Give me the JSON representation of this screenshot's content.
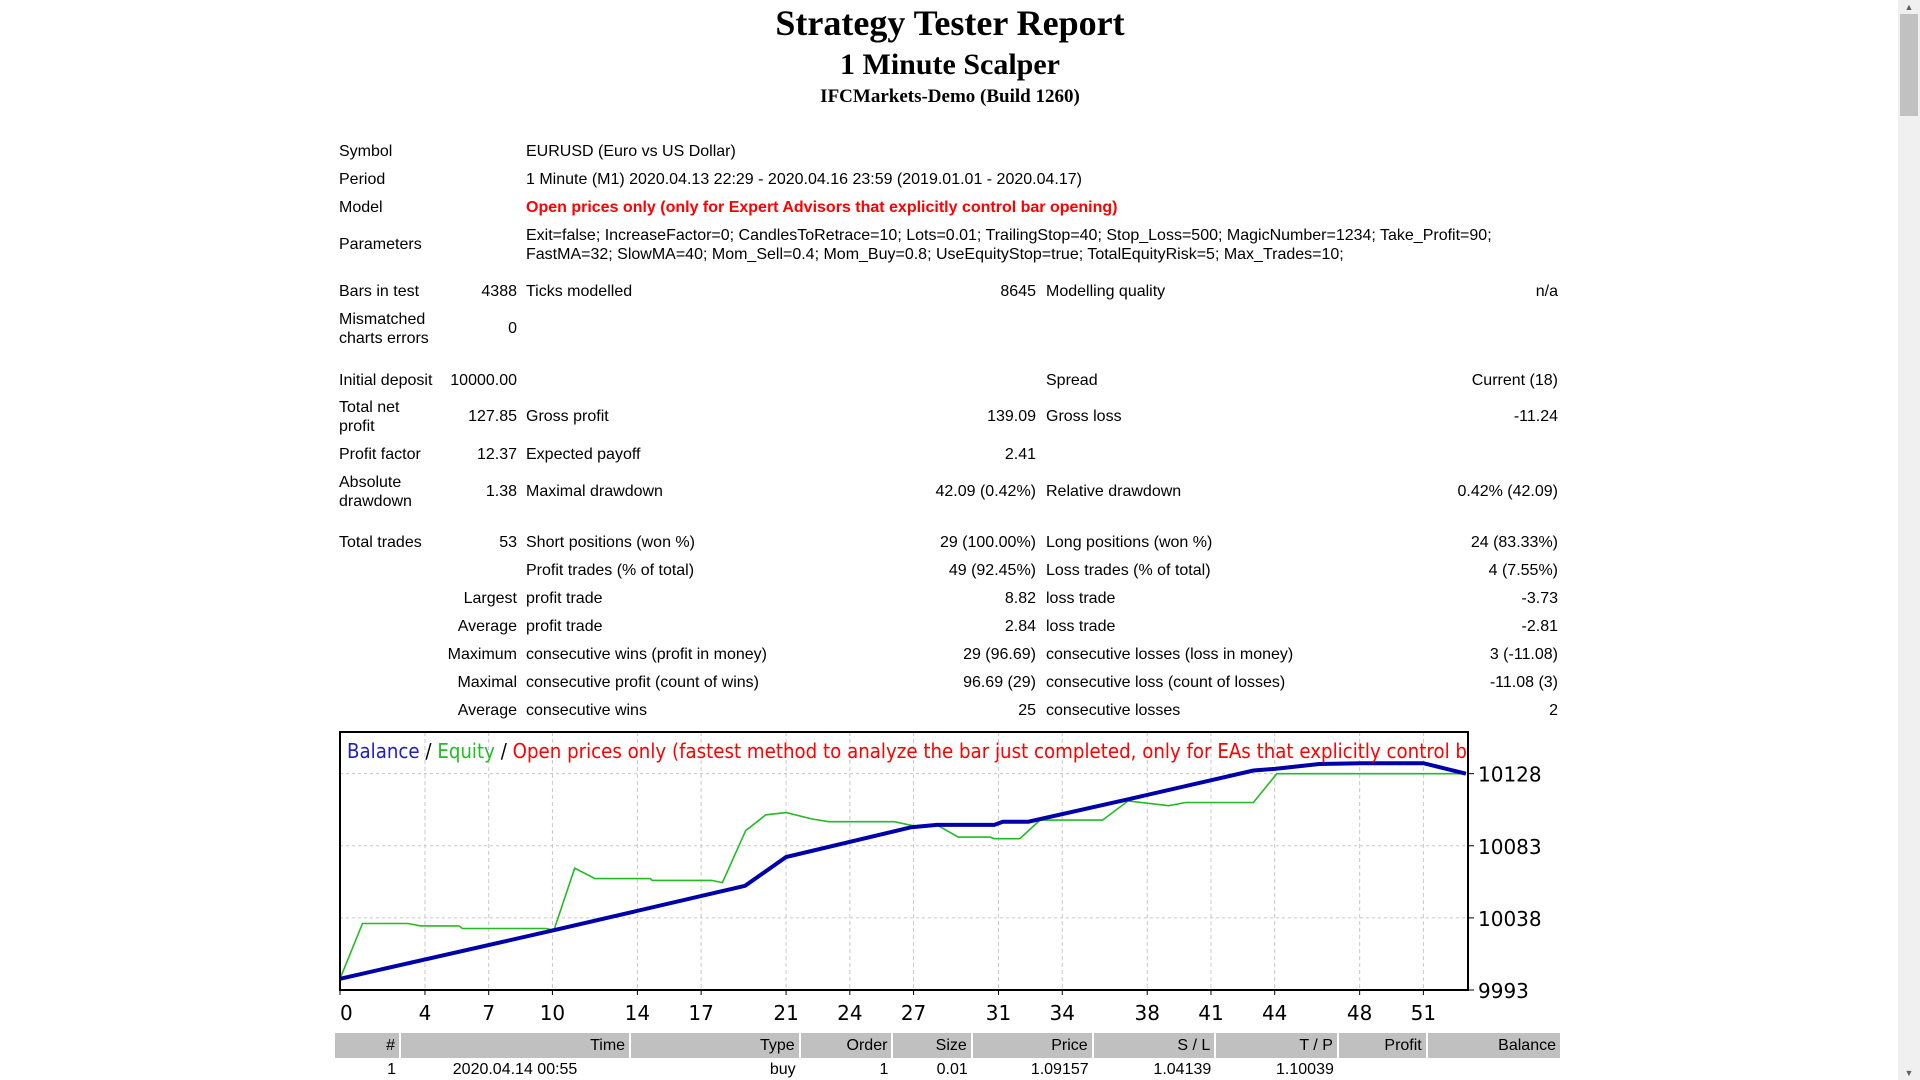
{
  "header": {
    "title": "Strategy Tester Report",
    "expert": "1 Minute Scalper",
    "server": "IFCMarkets-Demo (Build 1260)"
  },
  "info": {
    "symbol_label": "Symbol",
    "symbol": "EURUSD (Euro vs US Dollar)",
    "period_label": "Period",
    "period": "1 Minute (M1) 2020.04.13 22:29 - 2020.04.16 23:59 (2019.01.01 - 2020.04.17)",
    "model_label": "Model",
    "model": "Open prices only (only for Expert Advisors that explicitly control bar opening)",
    "parameters_label": "Parameters",
    "parameters_line1": "Exit=false; IncreaseFactor=0; CandlesToRetrace=10; Lots=0.01; TrailingStop=40; Stop_Loss=500; MagicNumber=1234; Take_Profit=90;",
    "parameters_line2": "FastMA=32; SlowMA=40; Mom_Sell=0.4; Mom_Buy=0.8; UseEquityStop=true; TotalEquityRisk=5; Max_Trades=10;",
    "bars_label": "Bars in test",
    "bars": "4388",
    "ticks_label": "Ticks modelled",
    "ticks": "8645",
    "quality_label": "Modelling quality",
    "quality": "n/a",
    "mismatched_label_1": "Mismatched",
    "mismatched_label_2": "charts errors",
    "mismatched": "0"
  },
  "stats": {
    "initial_deposit_label": "Initial deposit",
    "initial_deposit": "10000.00",
    "spread_label": "Spread",
    "spread": "Current (18)",
    "total_net_label_1": "Total net",
    "total_net_label_2": "profit",
    "total_net": "127.85",
    "gross_profit_label": "Gross profit",
    "gross_profit": "139.09",
    "gross_loss_label": "Gross loss",
    "gross_loss": "-11.24",
    "profit_factor_label": "Profit factor",
    "profit_factor": "12.37",
    "expected_payoff_label": "Expected payoff",
    "expected_payoff": "2.41",
    "absolute_dd_label_1": "Absolute",
    "absolute_dd_label_2": "drawdown",
    "absolute_dd": "1.38",
    "maximal_dd_label": "Maximal drawdown",
    "maximal_dd": "42.09 (0.42%)",
    "relative_dd_label": "Relative drawdown",
    "relative_dd": "0.42% (42.09)",
    "total_trades_label": "Total trades",
    "total_trades": "53",
    "short_label": "Short positions (won %)",
    "short": "29 (100.00%)",
    "long_label": "Long positions (won %)",
    "long": "24 (83.33%)",
    "profit_trades_label": "Profit trades (% of total)",
    "profit_trades": "49 (92.45%)",
    "loss_trades_label": "Loss trades (% of total)",
    "loss_trades": "4 (7.55%)",
    "largest_label": "Largest",
    "largest_profit_label": "profit trade",
    "largest_profit": "8.82",
    "largest_loss_label": "loss trade",
    "largest_loss": "-3.73",
    "average_label": "Average",
    "average_profit_label": "profit trade",
    "average_profit": "2.84",
    "average_loss_label": "loss trade",
    "average_loss": "-2.81",
    "maximum_label": "Maximum",
    "max_cons_wins_label": "consecutive wins (profit in money)",
    "max_cons_wins": "29 (96.69)",
    "max_cons_losses_label": "consecutive losses (loss in money)",
    "max_cons_losses": "3 (-11.08)",
    "maximal_label": "Maximal",
    "maximal_cons_profit_label": "consecutive profit (count of wins)",
    "maximal_cons_profit": "96.69 (29)",
    "maximal_cons_loss_label": "consecutive loss (count of losses)",
    "maximal_cons_loss": "-11.08 (3)",
    "avg_label": "Average",
    "avg_cons_wins_label": "consecutive wins",
    "avg_cons_wins": "25",
    "avg_cons_losses_label": "consecutive losses",
    "avg_cons_losses": "2"
  },
  "chart_data": {
    "type": "line",
    "legend": {
      "balance": "Balance",
      "sep1": " / ",
      "equity": "Equity",
      "sep2": " / ",
      "model": "Open prices only (fastest method to analyze the bar just completed, only for EAs that explicitly control b"
    },
    "colors": {
      "balance": "#0000aa",
      "equity": "#22bb22",
      "model": "#ff0000",
      "grid": "#c8c8c8"
    },
    "grid": true,
    "xlim": [
      0,
      53.1
    ],
    "ylim": [
      9993,
      10154
    ],
    "x_ticks": [
      0,
      4,
      7,
      10,
      14,
      17,
      21,
      24,
      27,
      31,
      34,
      38,
      41,
      44,
      48,
      51
    ],
    "y_ticks": [
      9993,
      10038,
      10083,
      10128
    ],
    "series": [
      {
        "name": "Balance",
        "points": [
          [
            0,
            10000
          ],
          [
            10.07,
            10030.3
          ],
          [
            19.07,
            10058
          ],
          [
            21,
            10076
          ],
          [
            26.9,
            10094.6
          ],
          [
            28.1,
            10096
          ],
          [
            30.8,
            10096
          ],
          [
            31.2,
            10098
          ],
          [
            32.4,
            10098
          ],
          [
            37.1,
            10112
          ],
          [
            43,
            10130
          ],
          [
            44,
            10131
          ],
          [
            46.1,
            10134
          ],
          [
            48.1,
            10134.5
          ],
          [
            51,
            10134.5
          ],
          [
            53,
            10128
          ]
        ]
      },
      {
        "name": "Equity",
        "points": [
          [
            0,
            10000
          ],
          [
            1.06,
            10034.5
          ],
          [
            3.2,
            10034.5
          ],
          [
            3.8,
            10033
          ],
          [
            5.6,
            10033
          ],
          [
            5.76,
            10031.4
          ],
          [
            9.7,
            10031.4
          ],
          [
            10.07,
            10030.3
          ],
          [
            11.05,
            10069
          ],
          [
            12,
            10062.5
          ],
          [
            14.6,
            10062.5
          ],
          [
            14.7,
            10061.4
          ],
          [
            17.5,
            10061.4
          ],
          [
            18,
            10060
          ],
          [
            19.1,
            10092.5
          ],
          [
            20.05,
            10102.3
          ],
          [
            21,
            10103.7
          ],
          [
            22.2,
            10099.8
          ],
          [
            23,
            10098
          ],
          [
            26.1,
            10098
          ],
          [
            27.3,
            10094.6
          ],
          [
            28.1,
            10096
          ],
          [
            29.1,
            10088.4
          ],
          [
            30.6,
            10088.4
          ],
          [
            30.8,
            10087.4
          ],
          [
            32,
            10087.4
          ],
          [
            32.95,
            10099
          ],
          [
            35.9,
            10099
          ],
          [
            37.1,
            10111
          ],
          [
            39,
            10108
          ],
          [
            39.8,
            10110
          ],
          [
            43,
            10110
          ],
          [
            44.1,
            10128
          ],
          [
            53,
            10128
          ]
        ]
      }
    ]
  },
  "trades": {
    "headers": [
      "#",
      "Time",
      "Type",
      "Order",
      "Size",
      "Price",
      "S / L",
      "T / P",
      "Profit",
      "Balance"
    ],
    "rows": [
      [
        "1",
        "2020.04.14 00:55",
        "buy",
        "1",
        "0.01",
        "1.09157",
        "1.04139",
        "1.10039",
        "",
        ""
      ]
    ]
  }
}
